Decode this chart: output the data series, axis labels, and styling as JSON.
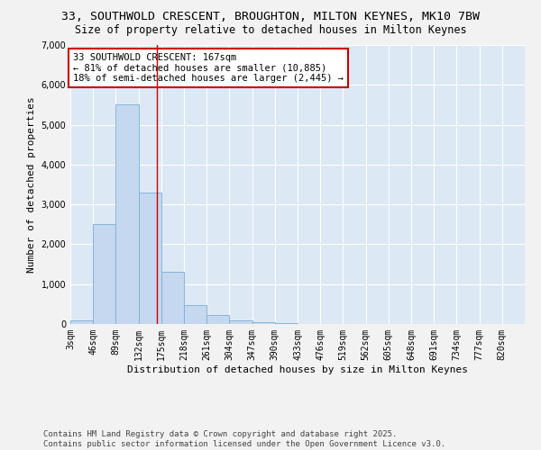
{
  "title_line1": "33, SOUTHWOLD CRESCENT, BROUGHTON, MILTON KEYNES, MK10 7BW",
  "title_line2": "Size of property relative to detached houses in Milton Keynes",
  "xlabel": "Distribution of detached houses by size in Milton Keynes",
  "ylabel": "Number of detached properties",
  "bar_color": "#c5d8ef",
  "bar_edge_color": "#7aafd4",
  "bg_color": "#dde8f5",
  "grid_color": "#ffffff",
  "annotation_text": "33 SOUTHWOLD CRESCENT: 167sqm\n← 81% of detached houses are smaller (10,885)\n18% of semi-detached houses are larger (2,445) →",
  "annotation_box_color": "#cc0000",
  "vline_color": "#cc0000",
  "vline_x": 167,
  "bin_edges": [
    3,
    46,
    89,
    132,
    175,
    218,
    261,
    304,
    347,
    390,
    433,
    476,
    519,
    562,
    605,
    648,
    691,
    734,
    777,
    820,
    863
  ],
  "bar_heights": [
    100,
    2500,
    5500,
    3300,
    1300,
    480,
    220,
    95,
    50,
    30,
    0,
    0,
    0,
    0,
    0,
    0,
    0,
    0,
    0,
    0
  ],
  "ylim": [
    0,
    7000
  ],
  "yticks": [
    0,
    1000,
    2000,
    3000,
    4000,
    5000,
    6000,
    7000
  ],
  "footer_text": "Contains HM Land Registry data © Crown copyright and database right 2025.\nContains public sector information licensed under the Open Government Licence v3.0.",
  "title_fontsize": 9.5,
  "subtitle_fontsize": 8.5,
  "axis_label_fontsize": 8,
  "tick_fontsize": 7,
  "annotation_fontsize": 7.5,
  "footer_fontsize": 6.5,
  "fig_bg_color": "#f2f2f2"
}
